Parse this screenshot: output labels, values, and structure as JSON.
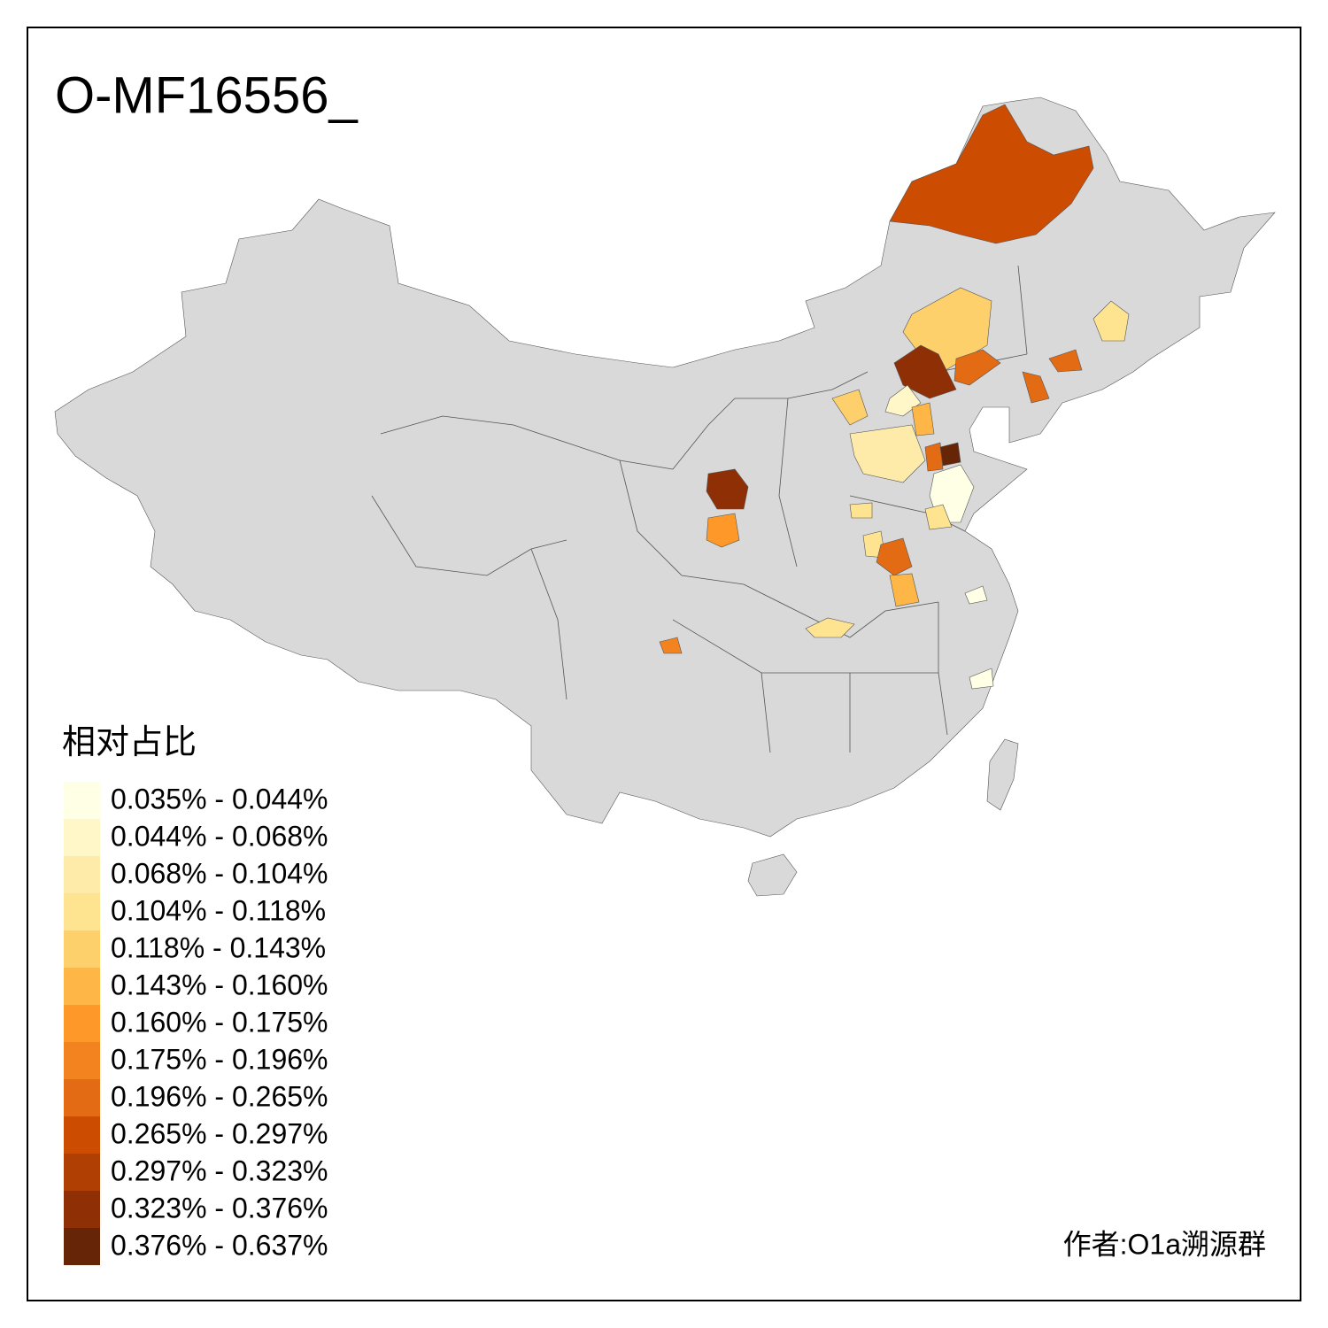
{
  "title": "O-MF16556_",
  "legend": {
    "title": "相对占比",
    "items": [
      {
        "label": "0.035% - 0.044%",
        "color": "#ffffe5"
      },
      {
        "label": "0.044% - 0.068%",
        "color": "#fff7c8"
      },
      {
        "label": "0.068% - 0.104%",
        "color": "#feebaa"
      },
      {
        "label": "0.104% - 0.118%",
        "color": "#fee391"
      },
      {
        "label": "0.118% - 0.143%",
        "color": "#fed06c"
      },
      {
        "label": "0.143% - 0.160%",
        "color": "#feb647"
      },
      {
        "label": "0.160% - 0.175%",
        "color": "#fe9929"
      },
      {
        "label": "0.175% - 0.196%",
        "color": "#f3831f"
      },
      {
        "label": "0.196% - 0.265%",
        "color": "#e26b13"
      },
      {
        "label": "0.265% - 0.297%",
        "color": "#cc4c02"
      },
      {
        "label": "0.297% - 0.323%",
        "color": "#b03f04"
      },
      {
        "label": "0.323% - 0.376%",
        "color": "#8f2f05"
      },
      {
        "label": "0.376% - 0.637%",
        "color": "#662506"
      }
    ]
  },
  "author": "作者:O1a溯源群"
}
